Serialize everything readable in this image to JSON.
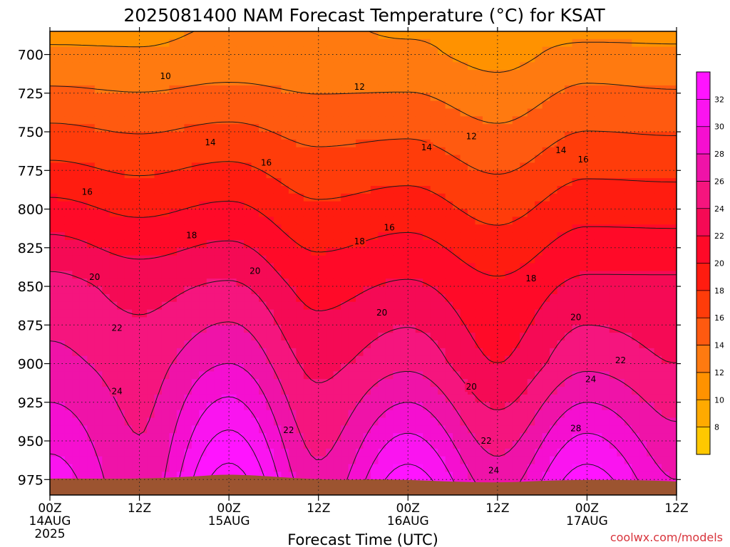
{
  "chart_data": {
    "type": "heatmap",
    "title": "2025081400 NAM Forecast Temperature (°C) for KSAT",
    "xlabel": "Forecast Time (UTC)",
    "credit": "coolwx.com/models",
    "x_ticks": [
      {
        "hours": 0,
        "label": "00Z",
        "date": "14AUG",
        "year": "2025"
      },
      {
        "hours": 12,
        "label": "12Z",
        "date": "",
        "year": ""
      },
      {
        "hours": 24,
        "label": "00Z",
        "date": "15AUG",
        "year": ""
      },
      {
        "hours": 36,
        "label": "12Z",
        "date": "",
        "year": ""
      },
      {
        "hours": 48,
        "label": "00Z",
        "date": "16AUG",
        "year": ""
      },
      {
        "hours": 60,
        "label": "12Z",
        "date": "",
        "year": ""
      },
      {
        "hours": 72,
        "label": "00Z",
        "date": "17AUG",
        "year": ""
      },
      {
        "hours": 84,
        "label": "12Z",
        "date": "",
        "year": ""
      }
    ],
    "xlim": [
      0,
      84
    ],
    "y_ticks": [
      700,
      725,
      750,
      775,
      800,
      825,
      850,
      875,
      900,
      925,
      950,
      975
    ],
    "ylim": [
      985,
      685
    ],
    "y_axis_inverted": true,
    "grid": true,
    "colorbar": {
      "ticks": [
        8,
        10,
        12,
        14,
        16,
        18,
        20,
        22,
        24,
        26,
        28,
        30,
        32
      ],
      "colors": [
        "#ffc800",
        "#ffaa00",
        "#ff9200",
        "#ff7a10",
        "#ff5a10",
        "#ff3c0a",
        "#ff1c10",
        "#ff0a28",
        "#f50a55",
        "#f5157e",
        "#ef13a8",
        "#f50fd0",
        "#fa14f0",
        "#ff14ff"
      ]
    },
    "contour_interval": 2,
    "profiles": [
      {
        "hours": 0,
        "temps": [
          {
            "p": 685,
            "t": 9.6
          },
          {
            "p": 700,
            "t": 10.3
          },
          {
            "p": 850,
            "t": 22.8
          },
          {
            "p": 900,
            "t": 24.5
          },
          {
            "p": 975,
            "t": 29.0
          }
        ]
      },
      {
        "hours": 12,
        "temps": [
          {
            "p": 685,
            "t": 9.6
          },
          {
            "p": 700,
            "t": 10.2
          },
          {
            "p": 850,
            "t": 21.3
          },
          {
            "p": 900,
            "t": 23.2
          },
          {
            "p": 975,
            "t": 24.5
          }
        ]
      },
      {
        "hours": 24,
        "temps": [
          {
            "p": 685,
            "t": 10.2
          },
          {
            "p": 700,
            "t": 10.6
          },
          {
            "p": 850,
            "t": 22.3
          },
          {
            "p": 900,
            "t": 26.0
          },
          {
            "p": 975,
            "t": 33.0
          }
        ]
      },
      {
        "hours": 36,
        "temps": [
          {
            "p": 685,
            "t": 10.3
          },
          {
            "p": 700,
            "t": 10.5
          },
          {
            "p": 850,
            "t": 19.3
          },
          {
            "p": 900,
            "t": 21.5
          },
          {
            "p": 975,
            "t": 24.5
          }
        ]
      },
      {
        "hours": 48,
        "temps": [
          {
            "p": 685,
            "t": 9.8
          },
          {
            "p": 700,
            "t": 10.4
          },
          {
            "p": 850,
            "t": 20.3
          },
          {
            "p": 900,
            "t": 23.5
          },
          {
            "p": 975,
            "t": 31.0
          }
        ]
      },
      {
        "hours": 60,
        "temps": [
          {
            "p": 685,
            "t": 9.3
          },
          {
            "p": 700,
            "t": 9.3
          },
          {
            "p": 850,
            "t": 18.4
          },
          {
            "p": 900,
            "t": 20.0
          },
          {
            "p": 975,
            "t": 25.0
          }
        ]
      },
      {
        "hours": 72,
        "temps": [
          {
            "p": 685,
            "t": 9.3
          },
          {
            "p": 700,
            "t": 10.8
          },
          {
            "p": 850,
            "t": 20.5
          },
          {
            "p": 900,
            "t": 23.5
          },
          {
            "p": 975,
            "t": 31.0
          }
        ]
      },
      {
        "hours": 84,
        "temps": [
          {
            "p": 685,
            "t": 9.4
          },
          {
            "p": 700,
            "t": 10.5
          },
          {
            "p": 850,
            "t": 20.5
          },
          {
            "p": 900,
            "t": 22.0
          },
          {
            "p": 975,
            "t": 26.0
          }
        ]
      }
    ],
    "contour_labels": [
      {
        "text": "10",
        "hours": 15.5,
        "p": 714
      },
      {
        "text": "12",
        "hours": 41.5,
        "p": 721
      },
      {
        "text": "12",
        "hours": 56.5,
        "p": 753
      },
      {
        "text": "14",
        "hours": 21.5,
        "p": 757
      },
      {
        "text": "14",
        "hours": 50.5,
        "p": 760
      },
      {
        "text": "14",
        "hours": 68.5,
        "p": 762
      },
      {
        "text": "16",
        "hours": 29,
        "p": 770
      },
      {
        "text": "16",
        "hours": 71.5,
        "p": 768
      },
      {
        "text": "16",
        "hours": 5,
        "p": 789
      },
      {
        "text": "16",
        "hours": 45.5,
        "p": 812
      },
      {
        "text": "18",
        "hours": 19,
        "p": 817
      },
      {
        "text": "18",
        "hours": 41.5,
        "p": 821
      },
      {
        "text": "18",
        "hours": 64.5,
        "p": 845
      },
      {
        "text": "20",
        "hours": 6,
        "p": 844
      },
      {
        "text": "20",
        "hours": 27.5,
        "p": 840
      },
      {
        "text": "20",
        "hours": 44.5,
        "p": 867
      },
      {
        "text": "20",
        "hours": 70.5,
        "p": 870
      },
      {
        "text": "20",
        "hours": 56.5,
        "p": 915
      },
      {
        "text": "22",
        "hours": 9,
        "p": 877
      },
      {
        "text": "22",
        "hours": 76.5,
        "p": 898
      },
      {
        "text": "22",
        "hours": 32,
        "p": 943
      },
      {
        "text": "22",
        "hours": 58.5,
        "p": 950
      },
      {
        "text": "24",
        "hours": 9,
        "p": 918
      },
      {
        "text": "24",
        "hours": 72.5,
        "p": 910
      },
      {
        "text": "24",
        "hours": 59.5,
        "p": 969
      },
      {
        "text": "28",
        "hours": 70.5,
        "p": 942
      }
    ]
  }
}
